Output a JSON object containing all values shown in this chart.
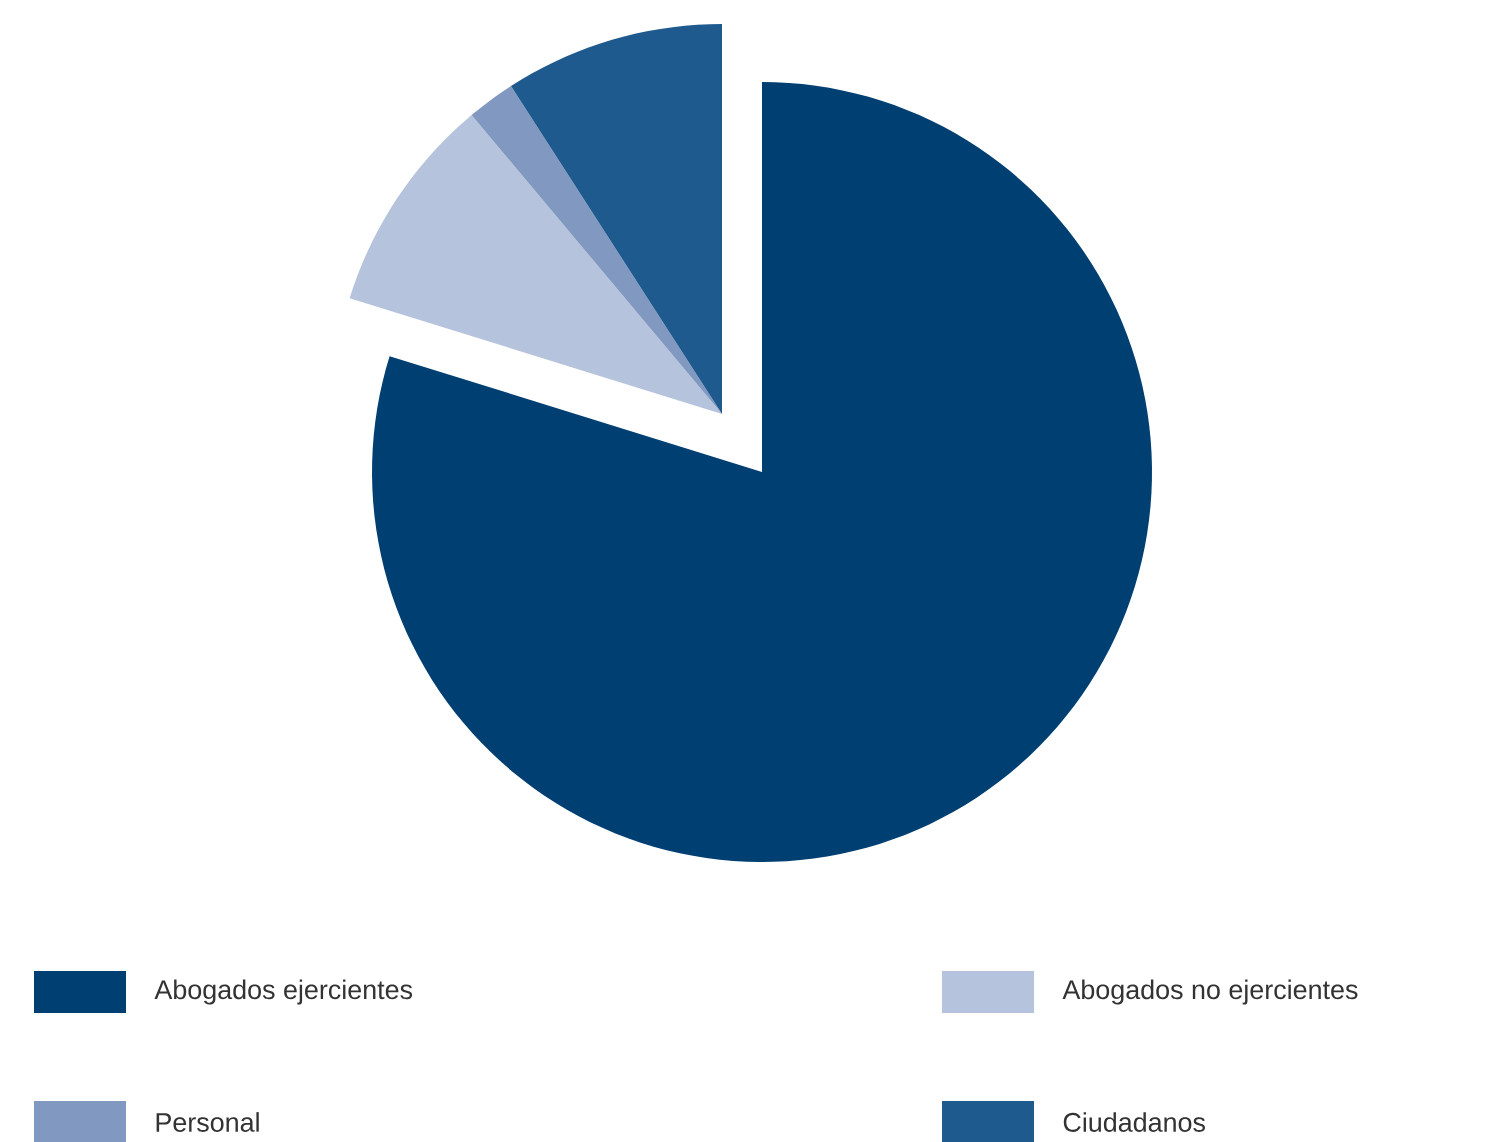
{
  "chart_data": {
    "type": "pie",
    "categories": [
      "Abogados ejercientes",
      "Abogados no ejercientes",
      "Personal",
      "Ciudadanos"
    ],
    "values": [
      79.8,
      9.1,
      2.0,
      9.1
    ],
    "colors": [
      "#003f72",
      "#b6c3dc",
      "#8199c0",
      "#1f5a8e"
    ],
    "legend": "bottom"
  }
}
